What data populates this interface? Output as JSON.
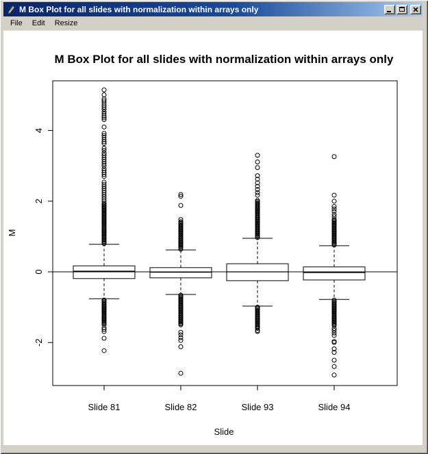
{
  "window": {
    "title": "M Box Plot for all slides with normalization within arrays only",
    "icon": "quill-pen-icon",
    "controls": [
      "minimize",
      "maximize",
      "close"
    ]
  },
  "menu_bar": {
    "items": [
      {
        "label": "File"
      },
      {
        "label": "Edit"
      },
      {
        "label": "Resize"
      }
    ]
  },
  "chart_data": {
    "type": "boxplot",
    "title": "M Box Plot for all slides with normalization within arrays only",
    "xlabel": "Slide",
    "ylabel": "M",
    "categories": [
      "Slide 81",
      "Slide 82",
      "Slide 93",
      "Slide 94"
    ],
    "yticks": [
      -2,
      0,
      2,
      4
    ],
    "ylim": [
      -3.2,
      5.4
    ],
    "reference_line": 0,
    "grid": false,
    "legend": "none",
    "series": [
      {
        "name": "Slide 81",
        "median": 0.02,
        "q1": -0.19,
        "q3": 0.17,
        "whisker_low": -0.76,
        "whisker_high": 0.78,
        "outliers_high": [
          {
            "from": 0.8,
            "to": 1.95,
            "step": 0.03
          },
          {
            "from": 2.0,
            "to": 2.56,
            "step": 0.06
          },
          {
            "from": 2.7,
            "to": 2.92,
            "step": 0.055
          },
          {
            "from": 3.0,
            "to": 3.36,
            "step": 0.06
          },
          3.44,
          3.5,
          3.63,
          3.68,
          3.74,
          3.8,
          3.86,
          3.92,
          4.1,
          4.31,
          4.36,
          4.41,
          4.47,
          4.53,
          4.6,
          4.66,
          4.72,
          4.78,
          4.84,
          4.89,
          5.01,
          5.15
        ],
        "outliers_low": [
          {
            "from": -0.8,
            "to": -1.5,
            "step": 0.03
          },
          -1.58,
          -1.63,
          -1.69,
          -1.88,
          -2.23
        ]
      },
      {
        "name": "Slide 82",
        "median": -0.01,
        "q1": -0.17,
        "q3": 0.12,
        "whisker_low": -0.64,
        "whisker_high": 0.62,
        "outliers_high": [
          {
            "from": 0.64,
            "to": 1.42,
            "step": 0.03
          },
          1.48,
          1.88,
          2.14,
          2.19
        ],
        "outliers_low": [
          {
            "from": -0.66,
            "to": -1.51,
            "step": 0.03
          },
          -1.71,
          -1.78,
          -1.86,
          -1.94,
          -2.12,
          -2.87
        ]
      },
      {
        "name": "Slide 93",
        "median": 0.0,
        "q1": -0.25,
        "q3": 0.23,
        "whisker_low": -0.97,
        "whisker_high": 0.95,
        "outliers_high": [
          {
            "from": 0.97,
            "to": 2.04,
            "step": 0.03
          },
          2.17,
          2.24,
          2.33,
          2.42,
          2.52,
          2.62,
          2.72,
          2.95,
          3.11,
          3.3
        ],
        "outliers_low": [
          {
            "from": -1.0,
            "to": -1.6,
            "step": 0.03
          },
          -1.66,
          -1.69
        ]
      },
      {
        "name": "Slide 94",
        "median": -0.02,
        "q1": -0.23,
        "q3": 0.14,
        "whisker_low": -0.78,
        "whisker_high": 0.74,
        "outliers_high": [
          {
            "from": 0.76,
            "to": 1.5,
            "step": 0.03
          },
          1.56,
          1.62,
          1.71,
          1.78,
          1.85,
          2.0,
          2.17,
          3.26
        ],
        "outliers_low": [
          {
            "from": -0.8,
            "to": -1.52,
            "step": 0.03
          },
          -1.6,
          -1.66,
          -1.73,
          -1.8,
          -1.97,
          -2.0,
          -2.18,
          -2.28,
          -2.5,
          -2.68,
          -2.92
        ]
      }
    ]
  }
}
